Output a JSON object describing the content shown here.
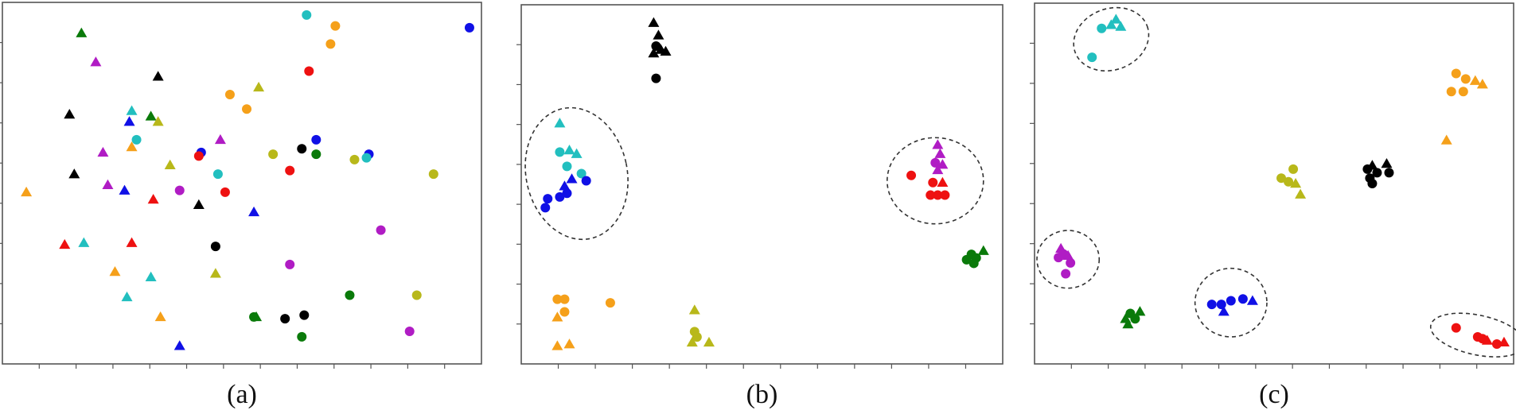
{
  "colors": {
    "black": "#000000",
    "green": "#0a7a0a",
    "magenta": "#b01cc4",
    "cyan": "#22bfbf",
    "blue": "#1010e6",
    "yellow": "#b8b81a",
    "orange": "#f5a01a",
    "red": "#ee1111"
  },
  "chart_data": [
    {
      "type": "scatter",
      "caption": "(a)",
      "xlim": [
        0,
        100
      ],
      "ylim": [
        0,
        100
      ],
      "grid": false,
      "clusters": [],
      "points": [
        {
          "x": 63.5,
          "y": 96.5,
          "c": "cyan",
          "m": "circle"
        },
        {
          "x": 69.5,
          "y": 93.5,
          "c": "orange",
          "m": "circle"
        },
        {
          "x": 97.5,
          "y": 93.0,
          "c": "blue",
          "m": "circle"
        },
        {
          "x": 16.5,
          "y": 91.5,
          "c": "green",
          "m": "triangle"
        },
        {
          "x": 68.5,
          "y": 88.5,
          "c": "orange",
          "m": "circle"
        },
        {
          "x": 19.5,
          "y": 83.5,
          "c": "magenta",
          "m": "triangle"
        },
        {
          "x": 64.0,
          "y": 81.0,
          "c": "red",
          "m": "circle"
        },
        {
          "x": 32.5,
          "y": 79.5,
          "c": "black",
          "m": "triangle"
        },
        {
          "x": 53.5,
          "y": 76.5,
          "c": "yellow",
          "m": "triangle"
        },
        {
          "x": 47.5,
          "y": 74.5,
          "c": "orange",
          "m": "circle"
        },
        {
          "x": 51.0,
          "y": 70.5,
          "c": "orange",
          "m": "circle"
        },
        {
          "x": 27.0,
          "y": 70.0,
          "c": "cyan",
          "m": "triangle"
        },
        {
          "x": 14.0,
          "y": 69.0,
          "c": "black",
          "m": "triangle"
        },
        {
          "x": 31.0,
          "y": 68.5,
          "c": "green",
          "m": "triangle"
        },
        {
          "x": 26.5,
          "y": 67.0,
          "c": "blue",
          "m": "triangle"
        },
        {
          "x": 32.5,
          "y": 67.0,
          "c": "yellow",
          "m": "triangle"
        },
        {
          "x": 28.0,
          "y": 62.0,
          "c": "cyan",
          "m": "circle"
        },
        {
          "x": 45.5,
          "y": 62.0,
          "c": "magenta",
          "m": "triangle"
        },
        {
          "x": 65.5,
          "y": 62.0,
          "c": "blue",
          "m": "circle"
        },
        {
          "x": 27.0,
          "y": 60.0,
          "c": "orange",
          "m": "triangle"
        },
        {
          "x": 62.5,
          "y": 59.5,
          "c": "black",
          "m": "circle"
        },
        {
          "x": 21.0,
          "y": 58.5,
          "c": "magenta",
          "m": "triangle"
        },
        {
          "x": 41.5,
          "y": 58.5,
          "c": "blue",
          "m": "circle"
        },
        {
          "x": 56.5,
          "y": 58.0,
          "c": "yellow",
          "m": "circle"
        },
        {
          "x": 65.5,
          "y": 58.0,
          "c": "green",
          "m": "circle"
        },
        {
          "x": 76.5,
          "y": 58.0,
          "c": "blue",
          "m": "circle"
        },
        {
          "x": 41.0,
          "y": 57.5,
          "c": "red",
          "m": "circle"
        },
        {
          "x": 76.0,
          "y": 57.0,
          "c": "cyan",
          "m": "circle"
        },
        {
          "x": 73.5,
          "y": 56.5,
          "c": "yellow",
          "m": "circle"
        },
        {
          "x": 35.0,
          "y": 55.0,
          "c": "yellow",
          "m": "triangle"
        },
        {
          "x": 60.0,
          "y": 53.5,
          "c": "red",
          "m": "circle"
        },
        {
          "x": 15.0,
          "y": 52.5,
          "c": "black",
          "m": "triangle"
        },
        {
          "x": 45.0,
          "y": 52.5,
          "c": "cyan",
          "m": "circle"
        },
        {
          "x": 90.0,
          "y": 52.5,
          "c": "yellow",
          "m": "circle"
        },
        {
          "x": 22.0,
          "y": 49.5,
          "c": "magenta",
          "m": "triangle"
        },
        {
          "x": 25.5,
          "y": 48.0,
          "c": "blue",
          "m": "triangle"
        },
        {
          "x": 37.0,
          "y": 48.0,
          "c": "magenta",
          "m": "circle"
        },
        {
          "x": 46.5,
          "y": 47.5,
          "c": "red",
          "m": "circle"
        },
        {
          "x": 5.0,
          "y": 47.5,
          "c": "orange",
          "m": "triangle"
        },
        {
          "x": 31.5,
          "y": 45.5,
          "c": "red",
          "m": "triangle"
        },
        {
          "x": 41.0,
          "y": 44.0,
          "c": "black",
          "m": "triangle"
        },
        {
          "x": 52.5,
          "y": 42.0,
          "c": "blue",
          "m": "triangle"
        },
        {
          "x": 79.0,
          "y": 37.0,
          "c": "magenta",
          "m": "circle"
        },
        {
          "x": 17.0,
          "y": 33.5,
          "c": "cyan",
          "m": "triangle"
        },
        {
          "x": 27.0,
          "y": 33.5,
          "c": "red",
          "m": "triangle"
        },
        {
          "x": 13.0,
          "y": 33.0,
          "c": "red",
          "m": "triangle"
        },
        {
          "x": 44.5,
          "y": 32.5,
          "c": "black",
          "m": "circle"
        },
        {
          "x": 60.0,
          "y": 27.5,
          "c": "magenta",
          "m": "circle"
        },
        {
          "x": 23.5,
          "y": 25.5,
          "c": "orange",
          "m": "triangle"
        },
        {
          "x": 44.5,
          "y": 25.0,
          "c": "yellow",
          "m": "triangle"
        },
        {
          "x": 31.0,
          "y": 24.0,
          "c": "cyan",
          "m": "triangle"
        },
        {
          "x": 26.0,
          "y": 18.5,
          "c": "cyan",
          "m": "triangle"
        },
        {
          "x": 72.5,
          "y": 19.0,
          "c": "green",
          "m": "circle"
        },
        {
          "x": 86.5,
          "y": 19.0,
          "c": "yellow",
          "m": "circle"
        },
        {
          "x": 33.0,
          "y": 13.0,
          "c": "orange",
          "m": "triangle"
        },
        {
          "x": 53.0,
          "y": 13.0,
          "c": "green",
          "m": "triangle"
        },
        {
          "x": 52.5,
          "y": 13.0,
          "c": "green",
          "m": "circle"
        },
        {
          "x": 59.0,
          "y": 12.5,
          "c": "black",
          "m": "circle"
        },
        {
          "x": 63.0,
          "y": 13.5,
          "c": "black",
          "m": "circle"
        },
        {
          "x": 85.0,
          "y": 9.0,
          "c": "magenta",
          "m": "circle"
        },
        {
          "x": 62.5,
          "y": 7.5,
          "c": "green",
          "m": "circle"
        },
        {
          "x": 37.0,
          "y": 5.0,
          "c": "blue",
          "m": "triangle"
        }
      ]
    },
    {
      "type": "scatter",
      "caption": "(b)",
      "xlim": [
        0,
        100
      ],
      "ylim": [
        0,
        100
      ],
      "grid": false,
      "clusters": [
        {
          "cx": 11.5,
          "cy": 53.0,
          "rx": 10.5,
          "ry": 18.5,
          "rotate": -12
        },
        {
          "cx": 86.0,
          "cy": 51.0,
          "rx": 10.0,
          "ry": 12.0,
          "rotate": 0
        }
      ],
      "points": [
        {
          "x": 27.5,
          "y": 95.0,
          "c": "black",
          "m": "triangle"
        },
        {
          "x": 28.5,
          "y": 91.5,
          "c": "black",
          "m": "triangle"
        },
        {
          "x": 28.0,
          "y": 88.5,
          "c": "black",
          "m": "circle"
        },
        {
          "x": 29.0,
          "y": 87.5,
          "c": "black",
          "m": "triangle"
        },
        {
          "x": 30.0,
          "y": 87.0,
          "c": "black",
          "m": "triangle"
        },
        {
          "x": 27.5,
          "y": 86.5,
          "c": "black",
          "m": "triangle"
        },
        {
          "x": 28.0,
          "y": 79.5,
          "c": "black",
          "m": "circle"
        },
        {
          "x": 8.0,
          "y": 67.0,
          "c": "cyan",
          "m": "triangle"
        },
        {
          "x": 8.0,
          "y": 59.0,
          "c": "cyan",
          "m": "circle"
        },
        {
          "x": 10.0,
          "y": 59.5,
          "c": "cyan",
          "m": "triangle"
        },
        {
          "x": 11.5,
          "y": 58.5,
          "c": "cyan",
          "m": "triangle"
        },
        {
          "x": 9.5,
          "y": 55.0,
          "c": "cyan",
          "m": "circle"
        },
        {
          "x": 12.5,
          "y": 53.0,
          "c": "cyan",
          "m": "circle"
        },
        {
          "x": 10.5,
          "y": 51.5,
          "c": "blue",
          "m": "triangle"
        },
        {
          "x": 9.0,
          "y": 49.5,
          "c": "blue",
          "m": "triangle"
        },
        {
          "x": 13.5,
          "y": 51.0,
          "c": "blue",
          "m": "circle"
        },
        {
          "x": 9.5,
          "y": 47.5,
          "c": "blue",
          "m": "circle"
        },
        {
          "x": 8.0,
          "y": 46.5,
          "c": "blue",
          "m": "circle"
        },
        {
          "x": 5.5,
          "y": 46.0,
          "c": "blue",
          "m": "circle"
        },
        {
          "x": 5.0,
          "y": 43.5,
          "c": "blue",
          "m": "circle"
        },
        {
          "x": 86.5,
          "y": 61.0,
          "c": "magenta",
          "m": "triangle"
        },
        {
          "x": 87.0,
          "y": 58.5,
          "c": "magenta",
          "m": "triangle"
        },
        {
          "x": 86.0,
          "y": 56.0,
          "c": "magenta",
          "m": "circle"
        },
        {
          "x": 87.5,
          "y": 55.5,
          "c": "magenta",
          "m": "triangle"
        },
        {
          "x": 86.5,
          "y": 54.0,
          "c": "magenta",
          "m": "triangle"
        },
        {
          "x": 81.0,
          "y": 52.5,
          "c": "red",
          "m": "circle"
        },
        {
          "x": 85.5,
          "y": 50.5,
          "c": "red",
          "m": "circle"
        },
        {
          "x": 87.5,
          "y": 50.5,
          "c": "red",
          "m": "triangle"
        },
        {
          "x": 85.0,
          "y": 47.0,
          "c": "red",
          "m": "circle"
        },
        {
          "x": 86.5,
          "y": 47.0,
          "c": "red",
          "m": "circle"
        },
        {
          "x": 88.0,
          "y": 47.0,
          "c": "red",
          "m": "circle"
        },
        {
          "x": 96.0,
          "y": 31.5,
          "c": "green",
          "m": "triangle"
        },
        {
          "x": 93.5,
          "y": 30.5,
          "c": "green",
          "m": "circle"
        },
        {
          "x": 94.5,
          "y": 29.5,
          "c": "green",
          "m": "circle"
        },
        {
          "x": 92.5,
          "y": 29.0,
          "c": "green",
          "m": "circle"
        },
        {
          "x": 94.0,
          "y": 28.0,
          "c": "green",
          "m": "circle"
        },
        {
          "x": 7.5,
          "y": 18.0,
          "c": "orange",
          "m": "circle"
        },
        {
          "x": 9.0,
          "y": 18.0,
          "c": "orange",
          "m": "circle"
        },
        {
          "x": 18.5,
          "y": 17.0,
          "c": "orange",
          "m": "circle"
        },
        {
          "x": 9.0,
          "y": 14.5,
          "c": "orange",
          "m": "circle"
        },
        {
          "x": 7.5,
          "y": 13.0,
          "c": "orange",
          "m": "triangle"
        },
        {
          "x": 7.5,
          "y": 5.0,
          "c": "orange",
          "m": "triangle"
        },
        {
          "x": 10.0,
          "y": 5.5,
          "c": "orange",
          "m": "triangle"
        },
        {
          "x": 36.0,
          "y": 15.0,
          "c": "yellow",
          "m": "triangle"
        },
        {
          "x": 36.0,
          "y": 9.0,
          "c": "yellow",
          "m": "circle"
        },
        {
          "x": 36.5,
          "y": 7.5,
          "c": "yellow",
          "m": "circle"
        },
        {
          "x": 35.5,
          "y": 6.0,
          "c": "yellow",
          "m": "triangle"
        },
        {
          "x": 39.0,
          "y": 6.0,
          "c": "yellow",
          "m": "triangle"
        }
      ]
    },
    {
      "type": "scatter",
      "caption": "(c)",
      "xlim": [
        0,
        100
      ],
      "ylim": [
        0,
        100
      ],
      "grid": false,
      "clusters": [
        {
          "cx": 16.0,
          "cy": 90.0,
          "rx": 8.0,
          "ry": 8.5,
          "rotate": -20
        },
        {
          "cx": 7.0,
          "cy": 29.0,
          "rx": 6.5,
          "ry": 8.0,
          "rotate": 0
        },
        {
          "cx": 41.0,
          "cy": 17.0,
          "rx": 7.5,
          "ry": 9.5,
          "rotate": 0
        },
        {
          "cx": 92.5,
          "cy": 8.0,
          "rx": 10.0,
          "ry": 5.5,
          "rotate": 12
        }
      ],
      "points": [
        {
          "x": 17.0,
          "y": 95.5,
          "c": "cyan",
          "m": "triangle"
        },
        {
          "x": 16.0,
          "y": 94.0,
          "c": "cyan",
          "m": "triangle"
        },
        {
          "x": 18.0,
          "y": 93.5,
          "c": "cyan",
          "m": "triangle"
        },
        {
          "x": 14.0,
          "y": 93.0,
          "c": "cyan",
          "m": "circle"
        },
        {
          "x": 12.0,
          "y": 85.0,
          "c": "cyan",
          "m": "circle"
        },
        {
          "x": 88.0,
          "y": 80.5,
          "c": "orange",
          "m": "circle"
        },
        {
          "x": 90.0,
          "y": 79.0,
          "c": "orange",
          "m": "circle"
        },
        {
          "x": 92.0,
          "y": 78.5,
          "c": "orange",
          "m": "triangle"
        },
        {
          "x": 93.5,
          "y": 77.5,
          "c": "orange",
          "m": "triangle"
        },
        {
          "x": 87.0,
          "y": 75.5,
          "c": "orange",
          "m": "circle"
        },
        {
          "x": 89.5,
          "y": 75.5,
          "c": "orange",
          "m": "circle"
        },
        {
          "x": 86.0,
          "y": 62.0,
          "c": "orange",
          "m": "triangle"
        },
        {
          "x": 70.5,
          "y": 55.0,
          "c": "black",
          "m": "triangle"
        },
        {
          "x": 73.5,
          "y": 55.5,
          "c": "black",
          "m": "triangle"
        },
        {
          "x": 69.5,
          "y": 54.0,
          "c": "black",
          "m": "circle"
        },
        {
          "x": 71.5,
          "y": 53.0,
          "c": "black",
          "m": "circle"
        },
        {
          "x": 70.0,
          "y": 51.5,
          "c": "black",
          "m": "circle"
        },
        {
          "x": 74.0,
          "y": 53.0,
          "c": "black",
          "m": "circle"
        },
        {
          "x": 70.5,
          "y": 50.0,
          "c": "black",
          "m": "circle"
        },
        {
          "x": 54.0,
          "y": 54.0,
          "c": "yellow",
          "m": "circle"
        },
        {
          "x": 51.5,
          "y": 51.5,
          "c": "yellow",
          "m": "circle"
        },
        {
          "x": 53.0,
          "y": 50.5,
          "c": "yellow",
          "m": "circle"
        },
        {
          "x": 54.5,
          "y": 50.0,
          "c": "yellow",
          "m": "triangle"
        },
        {
          "x": 55.5,
          "y": 47.0,
          "c": "yellow",
          "m": "triangle"
        },
        {
          "x": 5.5,
          "y": 32.0,
          "c": "magenta",
          "m": "triangle"
        },
        {
          "x": 6.0,
          "y": 30.5,
          "c": "magenta",
          "m": "circle"
        },
        {
          "x": 7.0,
          "y": 30.0,
          "c": "magenta",
          "m": "triangle"
        },
        {
          "x": 5.0,
          "y": 29.5,
          "c": "magenta",
          "m": "circle"
        },
        {
          "x": 7.5,
          "y": 28.0,
          "c": "magenta",
          "m": "circle"
        },
        {
          "x": 6.5,
          "y": 25.0,
          "c": "magenta",
          "m": "circle"
        },
        {
          "x": 20.0,
          "y": 14.0,
          "c": "green",
          "m": "circle"
        },
        {
          "x": 22.0,
          "y": 14.5,
          "c": "green",
          "m": "triangle"
        },
        {
          "x": 19.0,
          "y": 12.5,
          "c": "green",
          "m": "triangle"
        },
        {
          "x": 21.0,
          "y": 12.5,
          "c": "green",
          "m": "circle"
        },
        {
          "x": 19.5,
          "y": 11.0,
          "c": "green",
          "m": "triangle"
        },
        {
          "x": 37.0,
          "y": 16.5,
          "c": "blue",
          "m": "circle"
        },
        {
          "x": 39.0,
          "y": 16.5,
          "c": "blue",
          "m": "circle"
        },
        {
          "x": 41.0,
          "y": 17.5,
          "c": "blue",
          "m": "circle"
        },
        {
          "x": 43.5,
          "y": 18.0,
          "c": "blue",
          "m": "circle"
        },
        {
          "x": 45.5,
          "y": 17.5,
          "c": "blue",
          "m": "triangle"
        },
        {
          "x": 39.5,
          "y": 14.5,
          "c": "blue",
          "m": "triangle"
        },
        {
          "x": 88.0,
          "y": 10.0,
          "c": "red",
          "m": "circle"
        },
        {
          "x": 92.5,
          "y": 7.5,
          "c": "red",
          "m": "circle"
        },
        {
          "x": 93.5,
          "y": 7.0,
          "c": "red",
          "m": "circle"
        },
        {
          "x": 94.5,
          "y": 6.5,
          "c": "red",
          "m": "triangle"
        },
        {
          "x": 96.5,
          "y": 5.5,
          "c": "red",
          "m": "circle"
        },
        {
          "x": 98.0,
          "y": 6.0,
          "c": "red",
          "m": "triangle"
        }
      ]
    }
  ]
}
